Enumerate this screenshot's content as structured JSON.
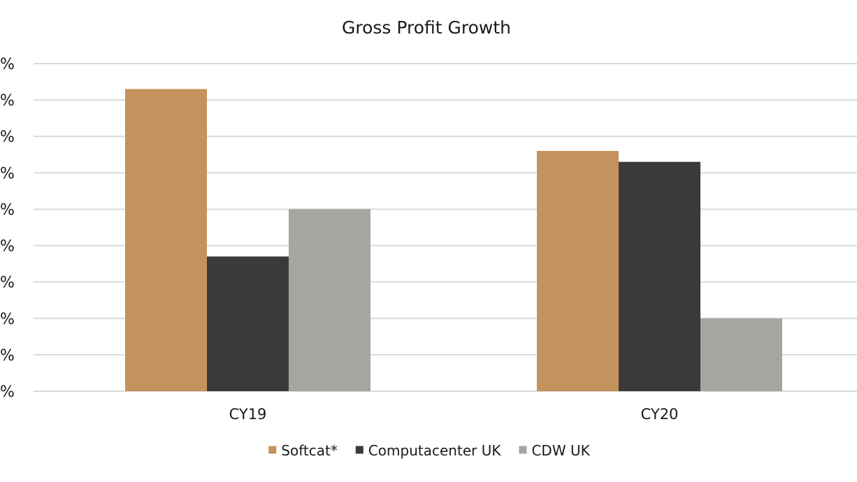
{
  "chart_data": {
    "type": "bar",
    "title": "Gross Profit Growth",
    "xlabel": "",
    "ylabel": "",
    "categories": [
      "CY19",
      "CY20"
    ],
    "series": [
      {
        "name": "Softcat*",
        "color": "#c4925d",
        "values": [
          8.3,
          6.6
        ]
      },
      {
        "name": "Computacenter UK",
        "color": "#3b3a38",
        "values": [
          3.7,
          6.3
        ]
      },
      {
        "name": "CDW UK",
        "color": "#a6a5a1",
        "values": [
          5.0,
          2.0
        ]
      }
    ],
    "ylim": [
      0,
      9
    ],
    "yticks": [
      0,
      1,
      2,
      3,
      4,
      5,
      6,
      7,
      8,
      9
    ],
    "ytick_labels": [
      "%",
      "%",
      "%",
      "%",
      "%",
      "%",
      "%",
      "%",
      "%",
      "%"
    ],
    "grid": true,
    "legend_position": "bottom"
  }
}
